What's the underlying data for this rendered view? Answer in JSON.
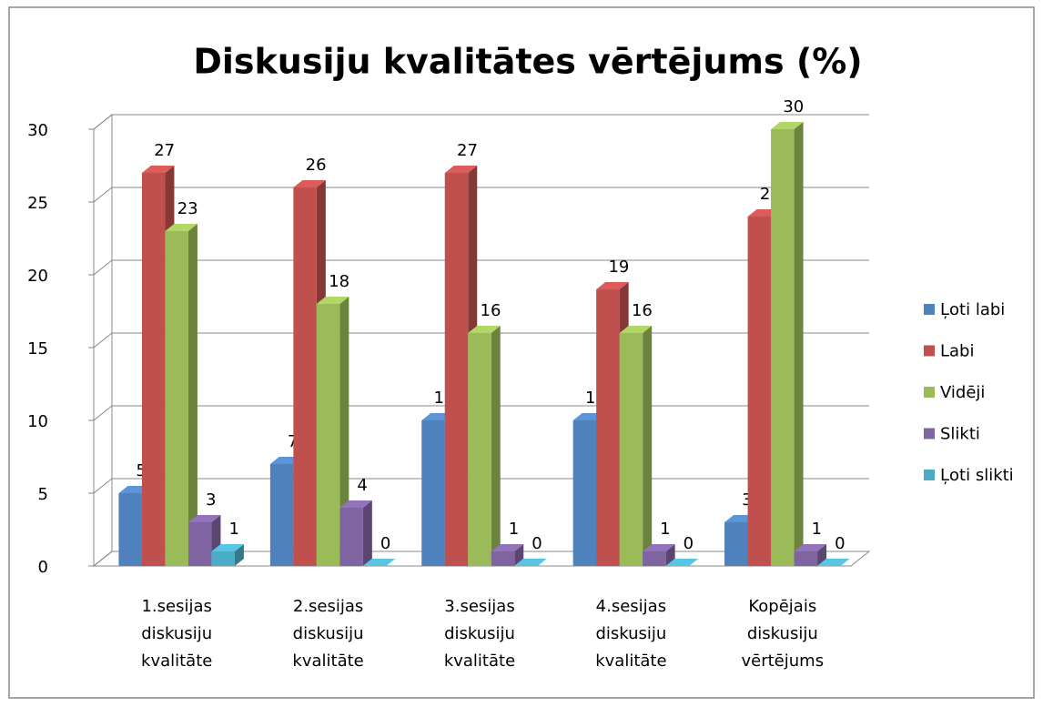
{
  "chart_data": {
    "type": "bar3d",
    "title": "Diskusiju kvalitātes vērtējums (%)",
    "categories": [
      "1.sesijas diskusiju kvalitāte",
      "2.sesijas diskusiju kvalitāte",
      "3.sesijas diskusiju kvalitāte",
      "4.sesijas diskusiju kvalitāte",
      "Kopējais diskusiju vērtējums"
    ],
    "series": [
      {
        "name": "Ļoti labi",
        "color": "#4f81bd",
        "values": [
          5,
          7,
          10,
          10,
          3
        ]
      },
      {
        "name": "Labi",
        "color": "#c0504d",
        "values": [
          27,
          26,
          27,
          19,
          24
        ]
      },
      {
        "name": "Vidēji",
        "color": "#9bbb59",
        "values": [
          23,
          18,
          16,
          16,
          30
        ]
      },
      {
        "name": "Slikti",
        "color": "#8064a2",
        "values": [
          3,
          4,
          1,
          1,
          1
        ]
      },
      {
        "name": "Ļoti slikti",
        "color": "#4bacc6",
        "values": [
          1,
          0,
          0,
          0,
          0
        ]
      }
    ],
    "ylim": [
      0,
      30
    ],
    "yticks": [
      0,
      5,
      10,
      15,
      20,
      25,
      30
    ],
    "grid": true,
    "legend": "right"
  }
}
